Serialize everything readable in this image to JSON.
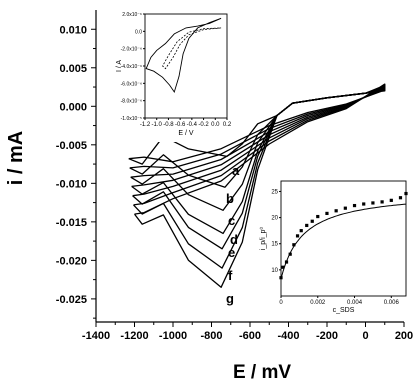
{
  "chart_data": [
    {
      "type": "line",
      "xlabel": "E / mV",
      "ylabel": "i / mA",
      "xlim": [
        -1400,
        200
      ],
      "ylim": [
        -0.028,
        0.0125
      ],
      "xticks": [
        "-1400",
        "-1200",
        "-1000",
        "-800",
        "-600",
        "-400",
        "-200",
        "0",
        "200"
      ],
      "yticks": [
        "0.010",
        "0.005",
        "0.000",
        "-0.005",
        "-0.010",
        "-0.015",
        "-0.020",
        "-0.025"
      ],
      "series": [
        {
          "name": "a",
          "peak_E": -720,
          "peak_i": -0.0065
        },
        {
          "name": "b",
          "peak_E": -730,
          "peak_i": -0.0105
        },
        {
          "name": "c",
          "peak_E": -740,
          "peak_i": -0.0135
        },
        {
          "name": "d",
          "peak_E": -740,
          "peak_i": -0.0165
        },
        {
          "name": "e",
          "peak_E": -745,
          "peak_i": -0.0185
        },
        {
          "name": "f",
          "peak_E": -745,
          "peak_i": -0.021
        },
        {
          "name": "g",
          "peak_E": -750,
          "peak_i": -0.0235
        }
      ]
    },
    {
      "type": "line",
      "xlabel": "E / V",
      "ylabel": "I / A",
      "xlim": [
        -1.2,
        0.2
      ],
      "ylim": [
        -1e-05,
        2e-06
      ],
      "xticks": [
        "-1.2",
        "-1.0",
        "-0.8",
        "-0.6",
        "-0.4",
        "-0.2",
        "0.0",
        "0.2"
      ],
      "yticks": [
        "2.0x10⁻⁶",
        "0.0",
        "-2.0x10⁻⁶",
        "-4.0x10⁻⁶",
        "-6.0x10⁻⁶",
        "-8.0x10⁻⁶",
        "-1.0x10⁻⁵"
      ]
    },
    {
      "type": "scatter",
      "xlabel": "c_SDS",
      "ylabel": "i_p/i_p⁰",
      "xlim": [
        0,
        0.0068
      ],
      "ylim": [
        5,
        27
      ],
      "xticks": [
        "0",
        "0.002",
        "0.004",
        "0.006"
      ],
      "yticks": [
        "10",
        "15",
        "20",
        "25"
      ],
      "x": [
        0,
        0.0001,
        0.0003,
        0.0005,
        0.0007,
        0.0009,
        0.0011,
        0.0014,
        0.0017,
        0.002,
        0.0025,
        0.003,
        0.0035,
        0.004,
        0.0045,
        0.005,
        0.0055,
        0.006,
        0.0065,
        0.0068
      ],
      "y": [
        8.5,
        10.5,
        11.5,
        13,
        14.8,
        16.5,
        17.5,
        18.5,
        19.3,
        20.2,
        20.8,
        21.3,
        21.8,
        22.3,
        22.6,
        22.8,
        23,
        23.3,
        23.8,
        24.6
      ]
    }
  ]
}
